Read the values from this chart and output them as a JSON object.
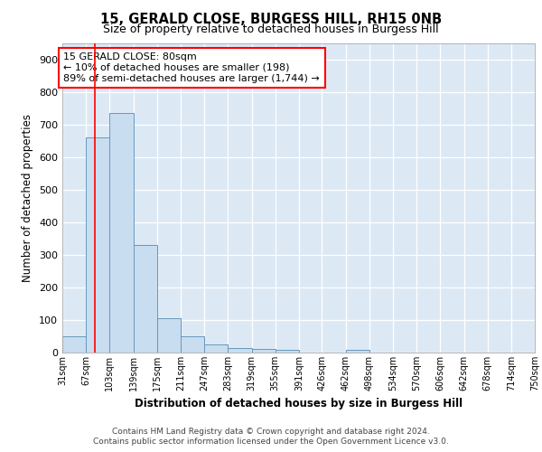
{
  "title1": "15, GERALD CLOSE, BURGESS HILL, RH15 0NB",
  "title2": "Size of property relative to detached houses in Burgess Hill",
  "xlabel": "Distribution of detached houses by size in Burgess Hill",
  "ylabel": "Number of detached properties",
  "bin_edges": [
    31,
    67,
    103,
    139,
    175,
    211,
    247,
    283,
    319,
    355,
    391,
    426,
    462,
    498,
    534,
    570,
    606,
    642,
    678,
    714,
    750
  ],
  "bin_labels": [
    "31sqm",
    "67sqm",
    "103sqm",
    "139sqm",
    "175sqm",
    "211sqm",
    "247sqm",
    "283sqm",
    "319sqm",
    "355sqm",
    "391sqm",
    "426sqm",
    "462sqm",
    "498sqm",
    "534sqm",
    "570sqm",
    "606sqm",
    "642sqm",
    "678sqm",
    "714sqm",
    "750sqm"
  ],
  "bar_heights": [
    50,
    660,
    735,
    330,
    105,
    50,
    25,
    13,
    12,
    8,
    0,
    0,
    8,
    0,
    0,
    0,
    0,
    0,
    0,
    0
  ],
  "bar_color": "#c9ddf0",
  "bar_edge_color": "#6699bb",
  "red_line_x": 80,
  "annotation_text": "15 GERALD CLOSE: 80sqm\n← 10% of detached houses are smaller (198)\n89% of semi-detached houses are larger (1,744) →",
  "annotation_box_color": "white",
  "annotation_border_color": "red",
  "ylim": [
    0,
    950
  ],
  "yticks": [
    0,
    100,
    200,
    300,
    400,
    500,
    600,
    700,
    800,
    900
  ],
  "footer1": "Contains HM Land Registry data © Crown copyright and database right 2024.",
  "footer2": "Contains public sector information licensed under the Open Government Licence v3.0.",
  "plot_bg_color": "#dce9f5"
}
